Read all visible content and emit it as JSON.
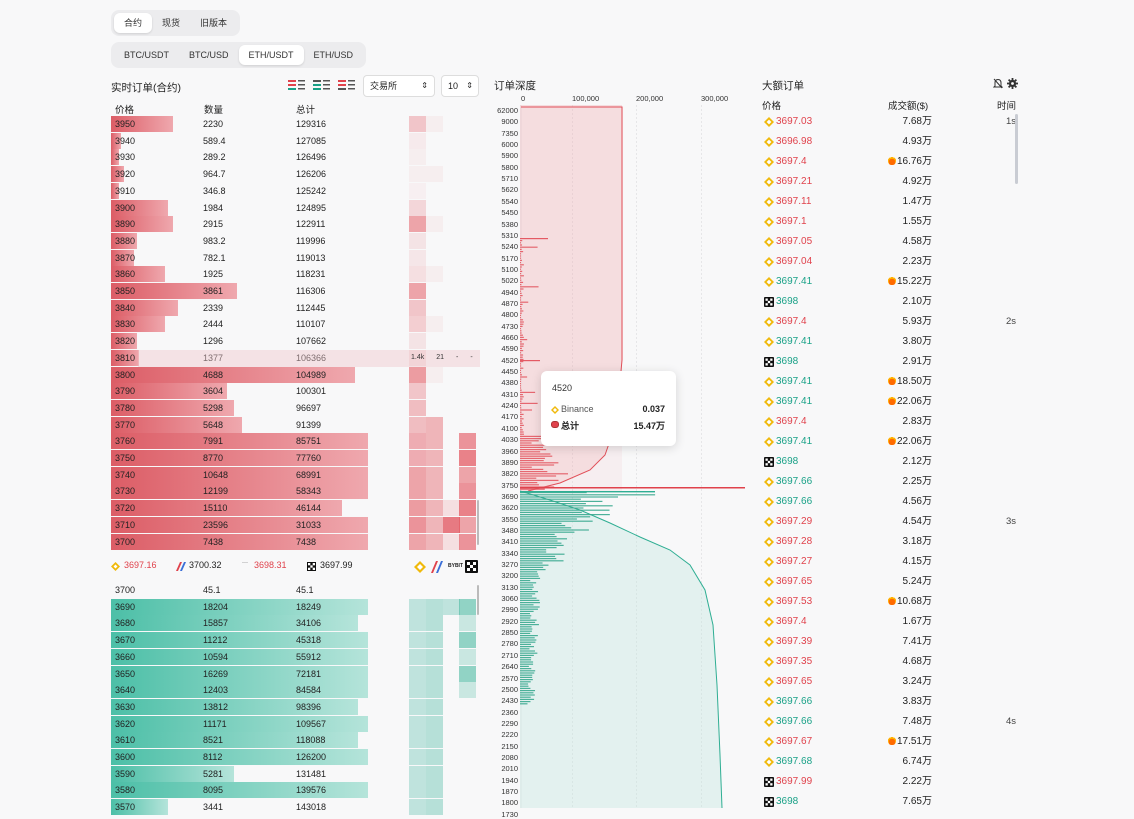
{
  "tabs_market": {
    "items": [
      "合约",
      "现货",
      "旧版本"
    ]
  },
  "tabs_pair": {
    "items": [
      "BTC/USDT",
      "BTC/USD",
      "ETH/USDT",
      "ETH/USD"
    ]
  },
  "orderbook": {
    "title": "实时订单(合约)",
    "headers": {
      "price": "价格",
      "qty": "数量",
      "total": "总计"
    },
    "exchange_select": "交易所",
    "depth_select": "10",
    "asks": [
      {
        "p": "3950",
        "q": "2230",
        "t": "129316",
        "w": 0.24
      },
      {
        "p": "3940",
        "q": "589.4",
        "t": "127085",
        "w": 0.04
      },
      {
        "p": "3930",
        "q": "289.2",
        "t": "126496",
        "w": 0.03
      },
      {
        "p": "3920",
        "q": "964.7",
        "t": "126206",
        "w": 0.05
      },
      {
        "p": "3910",
        "q": "346.8",
        "t": "125242",
        "w": 0.03
      },
      {
        "p": "3900",
        "q": "1984",
        "t": "124895",
        "w": 0.22
      },
      {
        "p": "3890",
        "q": "2915",
        "t": "122911",
        "w": 0.24
      },
      {
        "p": "3880",
        "q": "983.2",
        "t": "119996",
        "w": 0.1
      },
      {
        "p": "3870",
        "q": "782.1",
        "t": "119013",
        "w": 0.09
      },
      {
        "p": "3860",
        "q": "1925",
        "t": "118231",
        "w": 0.21
      },
      {
        "p": "3850",
        "q": "3861",
        "t": "116306",
        "w": 0.49
      },
      {
        "p": "3840",
        "q": "2339",
        "t": "112445",
        "w": 0.26
      },
      {
        "p": "3830",
        "q": "2444",
        "t": "110107",
        "w": 0.21
      },
      {
        "p": "3820",
        "q": "1296",
        "t": "107662",
        "w": 0.1
      },
      {
        "p": "3810",
        "q": "1377",
        "t": "106366",
        "w": 0.11
      },
      {
        "p": "3800",
        "q": "4688",
        "t": "104989",
        "w": 0.95
      },
      {
        "p": "3790",
        "q": "3604",
        "t": "100301",
        "w": 0.45
      },
      {
        "p": "3780",
        "q": "5298",
        "t": "96697",
        "w": 0.48
      },
      {
        "p": "3770",
        "q": "5648",
        "t": "91399",
        "w": 0.51
      },
      {
        "p": "3760",
        "q": "7991",
        "t": "85751",
        "w": 1
      },
      {
        "p": "3750",
        "q": "8770",
        "t": "77760",
        "w": 1
      },
      {
        "p": "3740",
        "q": "10648",
        "t": "68991",
        "w": 1
      },
      {
        "p": "3730",
        "q": "12199",
        "t": "58343",
        "w": 1
      },
      {
        "p": "3720",
        "q": "15110",
        "t": "46144",
        "w": 0.9
      },
      {
        "p": "3710",
        "q": "23596",
        "t": "31033",
        "w": 1
      },
      {
        "p": "3700",
        "q": "7438",
        "t": "7438",
        "w": 1
      }
    ],
    "hover_row": {
      "v1": "1.4k",
      "v2": "21",
      "v3": "-",
      "v4": "-"
    },
    "ticker": [
      {
        "icon": "binance-icon",
        "val": "3697.16",
        "color": "red"
      },
      {
        "icon": "bitmex-icon",
        "val": "3700.32",
        "color": "dark"
      },
      {
        "icon": "bybit-icon",
        "val": "3698.31",
        "color": "red"
      },
      {
        "icon": "okx-icon",
        "val": "3697.99",
        "color": "dark"
      }
    ],
    "bids": [
      {
        "p": "3700",
        "q": "45.1",
        "t": "45.1",
        "w": 0
      },
      {
        "p": "3690",
        "q": "18204",
        "t": "18249",
        "w": 1
      },
      {
        "p": "3680",
        "q": "15857",
        "t": "34106",
        "w": 0.96
      },
      {
        "p": "3670",
        "q": "11212",
        "t": "45318",
        "w": 1
      },
      {
        "p": "3660",
        "q": "10594",
        "t": "55912",
        "w": 1
      },
      {
        "p": "3650",
        "q": "16269",
        "t": "72181",
        "w": 1
      },
      {
        "p": "3640",
        "q": "12403",
        "t": "84584",
        "w": 1
      },
      {
        "p": "3630",
        "q": "13812",
        "t": "98396",
        "w": 0.96
      },
      {
        "p": "3620",
        "q": "11171",
        "t": "109567",
        "w": 1
      },
      {
        "p": "3610",
        "q": "8521",
        "t": "118088",
        "w": 0.96
      },
      {
        "p": "3600",
        "q": "8112",
        "t": "126200",
        "w": 1
      },
      {
        "p": "3590",
        "q": "5281",
        "t": "131481",
        "w": 0.48
      },
      {
        "p": "3580",
        "q": "8095",
        "t": "139576",
        "w": 1
      },
      {
        "p": "3570",
        "q": "3441",
        "t": "143018",
        "w": 0.22
      }
    ]
  },
  "depth": {
    "title": "订单深度",
    "axis": [
      "0",
      "100,000",
      "200,000",
      "300,000"
    ],
    "labels": [
      "62000",
      "9000",
      "7350",
      "6000",
      "5900",
      "5800",
      "5710",
      "5620",
      "5540",
      "5450",
      "5380",
      "5310",
      "5240",
      "5170",
      "5100",
      "5020",
      "4940",
      "4870",
      "4800",
      "4730",
      "4660",
      "4590",
      "4520",
      "4450",
      "4380",
      "4310",
      "4240",
      "4170",
      "4100",
      "4030",
      "3960",
      "3890",
      "3820",
      "3750",
      "3690",
      "3620",
      "3550",
      "3480",
      "3410",
      "3340",
      "3270",
      "3200",
      "3130",
      "3060",
      "2990",
      "2920",
      "2850",
      "2780",
      "2710",
      "2640",
      "2570",
      "2500",
      "2430",
      "2360",
      "2290",
      "2220",
      "2150",
      "2080",
      "2010",
      "1940",
      "1870",
      "1800",
      "1730"
    ],
    "tooltip": {
      "price": "4520",
      "ex_name": "Binance",
      "ex_val": "0.037",
      "total_label": "总计",
      "total_val": "15.47万"
    }
  },
  "big_orders": {
    "title": "大额订单",
    "headers": {
      "price": "价格",
      "amount": "成交额($)",
      "time": "时间"
    },
    "rows": [
      {
        "ex": "binance",
        "price": "3697.03",
        "c": "red",
        "amt": "7.68万",
        "fire": false,
        "time": "1s"
      },
      {
        "ex": "binance",
        "price": "3696.98",
        "c": "red",
        "amt": "4.93万",
        "fire": false,
        "time": ""
      },
      {
        "ex": "binance",
        "price": "3697.4",
        "c": "red",
        "amt": "16.76万",
        "fire": true,
        "time": ""
      },
      {
        "ex": "binance",
        "price": "3697.21",
        "c": "red",
        "amt": "4.92万",
        "fire": false,
        "time": ""
      },
      {
        "ex": "binance",
        "price": "3697.11",
        "c": "red",
        "amt": "1.47万",
        "fire": false,
        "time": ""
      },
      {
        "ex": "binance",
        "price": "3697.1",
        "c": "red",
        "amt": "1.55万",
        "fire": false,
        "time": ""
      },
      {
        "ex": "binance",
        "price": "3697.05",
        "c": "red",
        "amt": "4.58万",
        "fire": false,
        "time": ""
      },
      {
        "ex": "binance",
        "price": "3697.04",
        "c": "red",
        "amt": "2.23万",
        "fire": false,
        "time": ""
      },
      {
        "ex": "binance",
        "price": "3697.41",
        "c": "green",
        "amt": "15.22万",
        "fire": true,
        "time": ""
      },
      {
        "ex": "okx",
        "price": "3698",
        "c": "green",
        "amt": "2.10万",
        "fire": false,
        "time": ""
      },
      {
        "ex": "binance",
        "price": "3697.4",
        "c": "red",
        "amt": "5.93万",
        "fire": false,
        "time": "2s"
      },
      {
        "ex": "binance",
        "price": "3697.41",
        "c": "green",
        "amt": "3.80万",
        "fire": false,
        "time": ""
      },
      {
        "ex": "okx",
        "price": "3698",
        "c": "green",
        "amt": "2.91万",
        "fire": false,
        "time": ""
      },
      {
        "ex": "binance",
        "price": "3697.41",
        "c": "green",
        "amt": "18.50万",
        "fire": true,
        "time": ""
      },
      {
        "ex": "binance",
        "price": "3697.41",
        "c": "green",
        "amt": "22.06万",
        "fire": true,
        "time": ""
      },
      {
        "ex": "binance",
        "price": "3697.4",
        "c": "red",
        "amt": "2.83万",
        "fire": false,
        "time": ""
      },
      {
        "ex": "binance",
        "price": "3697.41",
        "c": "green",
        "amt": "22.06万",
        "fire": true,
        "time": ""
      },
      {
        "ex": "okx",
        "price": "3698",
        "c": "green",
        "amt": "2.12万",
        "fire": false,
        "time": ""
      },
      {
        "ex": "binance",
        "price": "3697.66",
        "c": "green",
        "amt": "2.25万",
        "fire": false,
        "time": ""
      },
      {
        "ex": "binance",
        "price": "3697.66",
        "c": "green",
        "amt": "4.56万",
        "fire": false,
        "time": ""
      },
      {
        "ex": "binance",
        "price": "3697.29",
        "c": "red",
        "amt": "4.54万",
        "fire": false,
        "time": "3s"
      },
      {
        "ex": "binance",
        "price": "3697.28",
        "c": "red",
        "amt": "3.18万",
        "fire": false,
        "time": ""
      },
      {
        "ex": "binance",
        "price": "3697.27",
        "c": "red",
        "amt": "4.15万",
        "fire": false,
        "time": ""
      },
      {
        "ex": "binance",
        "price": "3697.65",
        "c": "red",
        "amt": "5.24万",
        "fire": false,
        "time": ""
      },
      {
        "ex": "binance",
        "price": "3697.53",
        "c": "red",
        "amt": "10.68万",
        "fire": true,
        "time": ""
      },
      {
        "ex": "binance",
        "price": "3697.4",
        "c": "red",
        "amt": "1.67万",
        "fire": false,
        "time": ""
      },
      {
        "ex": "binance",
        "price": "3697.39",
        "c": "red",
        "amt": "7.41万",
        "fire": false,
        "time": ""
      },
      {
        "ex": "binance",
        "price": "3697.35",
        "c": "red",
        "amt": "4.68万",
        "fire": false,
        "time": ""
      },
      {
        "ex": "binance",
        "price": "3697.65",
        "c": "red",
        "amt": "3.24万",
        "fire": false,
        "time": ""
      },
      {
        "ex": "binance",
        "price": "3697.66",
        "c": "green",
        "amt": "3.83万",
        "fire": false,
        "time": ""
      },
      {
        "ex": "binance",
        "price": "3697.66",
        "c": "green",
        "amt": "7.48万",
        "fire": false,
        "time": "4s"
      },
      {
        "ex": "binance",
        "price": "3697.67",
        "c": "red",
        "amt": "17.51万",
        "fire": true,
        "time": ""
      },
      {
        "ex": "binance",
        "price": "3697.68",
        "c": "green",
        "amt": "6.74万",
        "fire": false,
        "time": ""
      },
      {
        "ex": "okx",
        "price": "3697.99",
        "c": "red",
        "amt": "2.22万",
        "fire": false,
        "time": ""
      },
      {
        "ex": "okx",
        "price": "3698",
        "c": "green",
        "amt": "7.65万",
        "fire": false,
        "time": ""
      }
    ]
  }
}
